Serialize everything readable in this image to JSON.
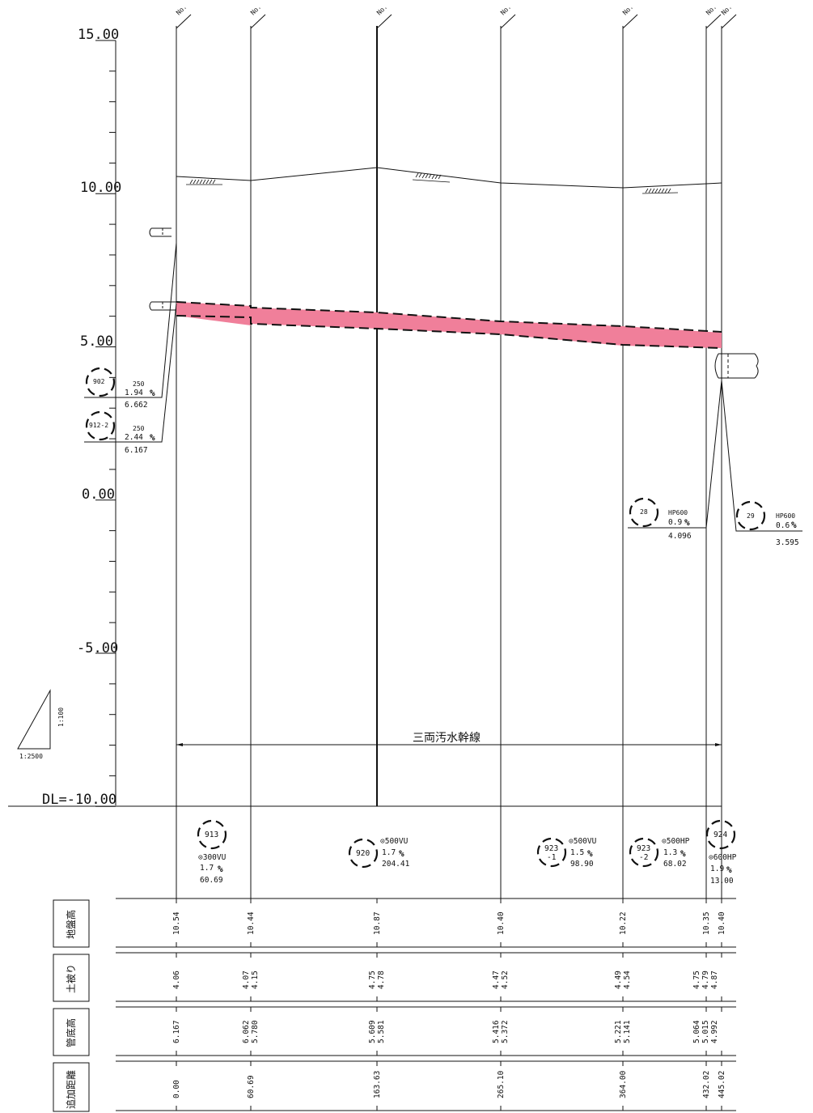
{
  "scale": {
    "elevation_labels": [
      "15.00",
      "10.00",
      "5.00",
      "0.00",
      "-5.00"
    ],
    "datum_label": "DL=-10.00",
    "ratio_vertical": "1:100",
    "ratio_horizontal": "1:2500"
  },
  "station_marker": "No.",
  "route_label": "三両汚水幹線",
  "side_pipes": [
    {
      "id": "902",
      "diameter": "250",
      "slope": "1.94",
      "slope_unit": "%",
      "elevation": "6.662"
    },
    {
      "id": "912-2",
      "diameter": "250",
      "slope": "2.44",
      "slope_unit": "%",
      "elevation": "6.167"
    },
    {
      "id": "28",
      "diameter": "HP600",
      "slope": "0.9",
      "slope_unit": "%",
      "elevation": "4.096"
    },
    {
      "id": "29",
      "diameter": "HP600",
      "slope": "0.6",
      "slope_unit": "%",
      "elevation": "3.595"
    }
  ],
  "segments": [
    {
      "id": "913",
      "pipe": "⊙300VU",
      "slope": "1.7",
      "slope_unit": "%",
      "length": "60.69"
    },
    {
      "id": "920",
      "pipe": "⊙500VU",
      "slope": "1.7",
      "slope_unit": "%",
      "length": "204.41"
    },
    {
      "id_top": "923",
      "id_bottom": "-1",
      "pipe": "⊙500VU",
      "slope": "1.5",
      "slope_unit": "%",
      "length": "98.90"
    },
    {
      "id_top": "923",
      "id_bottom": "-2",
      "pipe": "⊙500HP",
      "slope": "1.3",
      "slope_unit": "%",
      "length": "68.02"
    },
    {
      "id": "924",
      "pipe": "⊙600HP",
      "slope": "1.9",
      "slope_unit": "%",
      "length": "13.00"
    }
  ],
  "table": {
    "row_labels": [
      "地盤高",
      "土被り",
      "管底高",
      "追加距離"
    ],
    "ground_height": [
      "10.54",
      "10.44",
      "10.87",
      "10.40",
      "10.22",
      "10.35",
      "10.40"
    ],
    "cover": [
      [
        "4.06"
      ],
      [
        "4.07",
        "4.15"
      ],
      [
        "4.75",
        "4.78"
      ],
      [
        "4.47",
        "4.52"
      ],
      [
        "4.49",
        "4.54"
      ],
      [
        "4.75",
        "4.79",
        "4.87"
      ]
    ],
    "invert": [
      [
        "6.167"
      ],
      [
        "6.062",
        "5.780"
      ],
      [
        "5.609",
        "5.581"
      ],
      [
        "5.416",
        "5.372"
      ],
      [
        "5.221",
        "5.141"
      ],
      [
        "5.064",
        "5.015",
        "4.992"
      ]
    ],
    "distance": [
      "0.00",
      "60.69",
      "163.63",
      "265.10",
      "364.00",
      "432.02",
      "445.02"
    ]
  },
  "colors": {
    "pipe_fill": "#f07f9a",
    "line": "#111111"
  }
}
